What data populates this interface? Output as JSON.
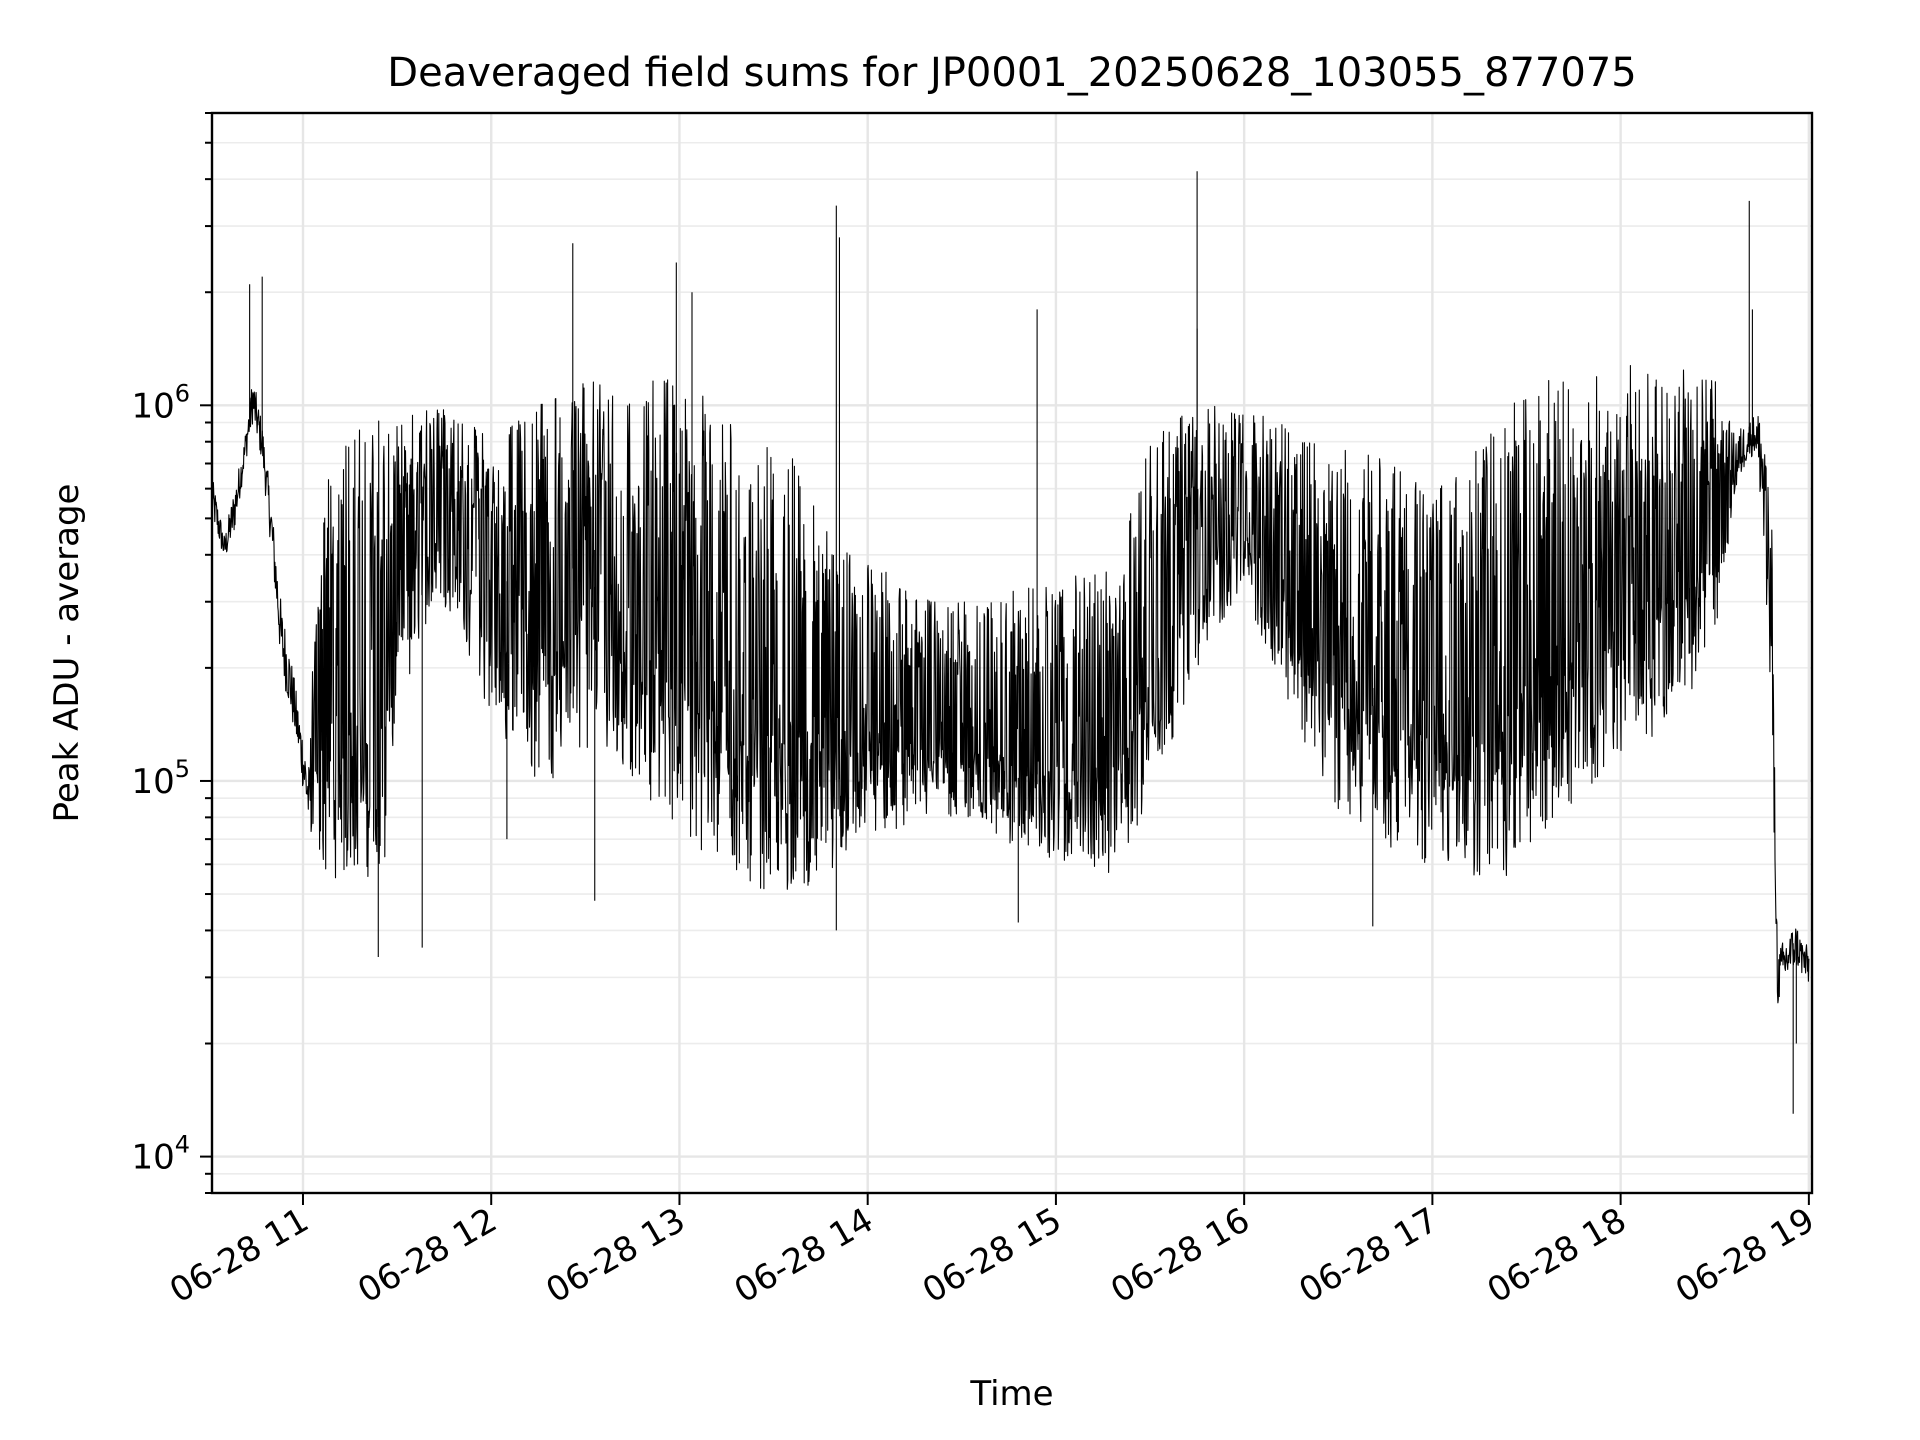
{
  "chart_data": {
    "type": "line",
    "title": "Deaveraged field sums for JP0001_20250628_103055_877075",
    "xlabel": "Time",
    "ylabel": "Peak ADU - average",
    "yscale": "log",
    "ylim": [
      8000,
      6000000
    ],
    "xlim": [
      "2025-06-28 10:31",
      "2025-06-28 19:01"
    ],
    "grid": true,
    "line_color": "#000000",
    "x_ticks": [
      {
        "value": "2025-06-28 11:00",
        "label": "06-28 11"
      },
      {
        "value": "2025-06-28 12:00",
        "label": "06-28 12"
      },
      {
        "value": "2025-06-28 13:00",
        "label": "06-28 13"
      },
      {
        "value": "2025-06-28 14:00",
        "label": "06-28 14"
      },
      {
        "value": "2025-06-28 15:00",
        "label": "06-28 15"
      },
      {
        "value": "2025-06-28 16:00",
        "label": "06-28 16"
      },
      {
        "value": "2025-06-28 17:00",
        "label": "06-28 17"
      },
      {
        "value": "2025-06-28 18:00",
        "label": "06-28 18"
      },
      {
        "value": "2025-06-28 19:00",
        "label": "06-28 19"
      }
    ],
    "y_ticks": [
      {
        "value": 10000,
        "base": "10",
        "exp": "4"
      },
      {
        "value": 100000,
        "base": "10",
        "exp": "5"
      },
      {
        "value": 1000000,
        "base": "10",
        "exp": "6"
      }
    ],
    "series": [
      {
        "x": [
          "2025-06-28 10:31",
          "2025-06-28 10:35",
          "2025-06-28 10:38",
          "2025-06-28 10:41",
          "2025-06-28 10:44",
          "2025-06-28 10:47",
          "2025-06-28 10:50",
          "2025-06-28 10:53",
          "2025-06-28 10:56",
          "2025-06-28 10:59",
          "2025-06-28 11:02",
          "2025-06-28 11:05",
          "2025-06-28 11:08",
          "2025-06-28 11:11",
          "2025-06-28 11:14",
          "2025-06-28 11:17",
          "2025-06-28 11:20",
          "2025-06-28 11:23",
          "2025-06-28 11:26",
          "2025-06-28 11:29",
          "2025-06-28 11:32",
          "2025-06-28 11:35",
          "2025-06-28 11:38",
          "2025-06-28 11:41",
          "2025-06-28 11:44",
          "2025-06-28 11:47",
          "2025-06-28 11:50",
          "2025-06-28 11:55",
          "2025-06-28 12:00",
          "2025-06-28 12:05",
          "2025-06-28 12:10",
          "2025-06-28 12:15",
          "2025-06-28 12:20",
          "2025-06-28 12:25",
          "2025-06-28 12:30",
          "2025-06-28 12:35",
          "2025-06-28 12:40",
          "2025-06-28 12:45",
          "2025-06-28 12:50",
          "2025-06-28 12:55",
          "2025-06-28 13:00",
          "2025-06-28 13:05",
          "2025-06-28 13:10",
          "2025-06-28 13:15",
          "2025-06-28 13:20",
          "2025-06-28 13:25",
          "2025-06-28 13:30",
          "2025-06-28 13:35",
          "2025-06-28 13:40",
          "2025-06-28 13:45",
          "2025-06-28 13:50",
          "2025-06-28 13:55",
          "2025-06-28 14:00",
          "2025-06-28 14:10",
          "2025-06-28 14:20",
          "2025-06-28 14:30",
          "2025-06-28 14:40",
          "2025-06-28 14:50",
          "2025-06-28 15:00",
          "2025-06-28 15:10",
          "2025-06-28 15:20",
          "2025-06-28 15:30",
          "2025-06-28 15:40",
          "2025-06-28 15:50",
          "2025-06-28 16:00",
          "2025-06-28 16:10",
          "2025-06-28 16:20",
          "2025-06-28 16:30",
          "2025-06-28 16:40",
          "2025-06-28 16:50",
          "2025-06-28 17:00",
          "2025-06-28 17:10",
          "2025-06-28 17:20",
          "2025-06-28 17:30",
          "2025-06-28 17:40",
          "2025-06-28 17:50",
          "2025-06-28 18:00",
          "2025-06-28 18:10",
          "2025-06-28 18:20",
          "2025-06-28 18:30",
          "2025-06-28 18:36",
          "2025-06-28 18:40",
          "2025-06-28 18:43",
          "2025-06-28 18:45",
          "2025-06-28 18:48",
          "2025-06-28 18:50",
          "2025-06-28 18:52",
          "2025-06-28 18:54",
          "2025-06-28 18:56",
          "2025-06-28 18:58",
          "2025-06-28 19:00"
        ],
        "high": [
          650000,
          450000,
          600000,
          780000,
          1200000,
          900000,
          550000,
          300000,
          220000,
          150000,
          110000,
          600000,
          700000,
          800000,
          850000,
          880000,
          900000,
          920000,
          930000,
          950000,
          960000,
          970000,
          980000,
          990000,
          1000000,
          950000,
          900000,
          900000,
          880000,
          920000,
          950000,
          1000000,
          1050000,
          1100000,
          1150000,
          1200000,
          1100000,
          1000000,
          1150000,
          1200000,
          1150000,
          1100000,
          1050000,
          1000000,
          900000,
          850000,
          800000,
          750000,
          650000,
          550000,
          450000,
          420000,
          400000,
          350000,
          300000,
          300000,
          320000,
          330000,
          340000,
          360000,
          380000,
          900000,
          950000,
          1000000,
          1000000,
          900000,
          850000,
          800000,
          750000,
          700000,
          600000,
          700000,
          900000,
          1100000,
          1200000,
          1250000,
          1300000,
          1300000,
          1250000,
          1200000,
          850000,
          900000,
          950000,
          1000000,
          600000,
          35000,
          38000,
          40000,
          42000,
          38000,
          36000
        ],
        "low": [
          500000,
          380000,
          450000,
          650000,
          900000,
          700000,
          400000,
          200000,
          150000,
          110000,
          70000,
          60000,
          55000,
          55000,
          55000,
          55000,
          55000,
          58000,
          60000,
          120000,
          160000,
          200000,
          250000,
          280000,
          300000,
          280000,
          260000,
          180000,
          150000,
          120000,
          110000,
          100000,
          100000,
          110000,
          120000,
          130000,
          110000,
          100000,
          90000,
          80000,
          75000,
          65000,
          60000,
          58000,
          55000,
          52000,
          50000,
          50000,
          52000,
          55000,
          60000,
          65000,
          70000,
          75000,
          80000,
          78000,
          72000,
          65000,
          60000,
          58000,
          55000,
          90000,
          150000,
          250000,
          300000,
          200000,
          120000,
          80000,
          70000,
          62000,
          60000,
          55000,
          52000,
          60000,
          80000,
          90000,
          120000,
          130000,
          160000,
          220000,
          550000,
          700000,
          750000,
          500000,
          150000,
          25000,
          28000,
          30000,
          32000,
          30000,
          28000
        ],
        "mid": [
          560000,
          420000,
          520000,
          720000,
          1050000,
          800000,
          470000,
          250000,
          190000,
          130000,
          90000,
          180000,
          160000,
          130000,
          120000,
          110000,
          100000,
          140000,
          170000,
          320000,
          400000,
          480000,
          520000,
          560000,
          600000,
          560000,
          520000,
          420000,
          380000,
          340000,
          320000,
          300000,
          320000,
          360000,
          400000,
          420000,
          360000,
          320000,
          300000,
          280000,
          260000,
          240000,
          200000,
          180000,
          150000,
          130000,
          110000,
          100000,
          95000,
          95000,
          100000,
          105000,
          110000,
          115000,
          125000,
          120000,
          110000,
          100000,
          95000,
          95000,
          100000,
          320000,
          420000,
          520000,
          560000,
          420000,
          320000,
          240000,
          180000,
          150000,
          120000,
          120000,
          130000,
          200000,
          300000,
          350000,
          420000,
          450000,
          480000,
          550000,
          700000,
          820000,
          850000,
          780000,
          320000,
          30000,
          34000,
          36000,
          38000,
          34000,
          32000
        ]
      }
    ],
    "spikes": [
      {
        "x": "2025-06-28 10:43",
        "y": 2100000
      },
      {
        "x": "2025-06-28 10:47",
        "y": 2200000
      },
      {
        "x": "2025-06-28 12:26",
        "y": 2700000
      },
      {
        "x": "2025-06-28 12:59",
        "y": 2400000
      },
      {
        "x": "2025-06-28 13:04",
        "y": 2000000
      },
      {
        "x": "2025-06-28 13:50",
        "y": 3400000
      },
      {
        "x": "2025-06-28 13:51",
        "y": 2800000
      },
      {
        "x": "2025-06-28 14:54",
        "y": 1800000
      },
      {
        "x": "2025-06-28 15:45",
        "y": 4200000
      },
      {
        "x": "2025-06-28 15:45",
        "y": 1600000
      },
      {
        "x": "2025-06-28 18:41",
        "y": 3500000
      },
      {
        "x": "2025-06-28 18:42",
        "y": 1800000
      }
    ],
    "dips": [
      {
        "x": "2025-06-28 11:24",
        "y": 34000
      },
      {
        "x": "2025-06-28 11:38",
        "y": 36000
      },
      {
        "x": "2025-06-28 12:05",
        "y": 70000
      },
      {
        "x": "2025-06-28 12:33",
        "y": 48000
      },
      {
        "x": "2025-06-28 13:50",
        "y": 40000
      },
      {
        "x": "2025-06-28 14:48",
        "y": 42000
      },
      {
        "x": "2025-06-28 16:41",
        "y": 41000
      },
      {
        "x": "2025-06-28 18:55",
        "y": 13000
      },
      {
        "x": "2025-06-28 18:56",
        "y": 20000
      }
    ]
  }
}
